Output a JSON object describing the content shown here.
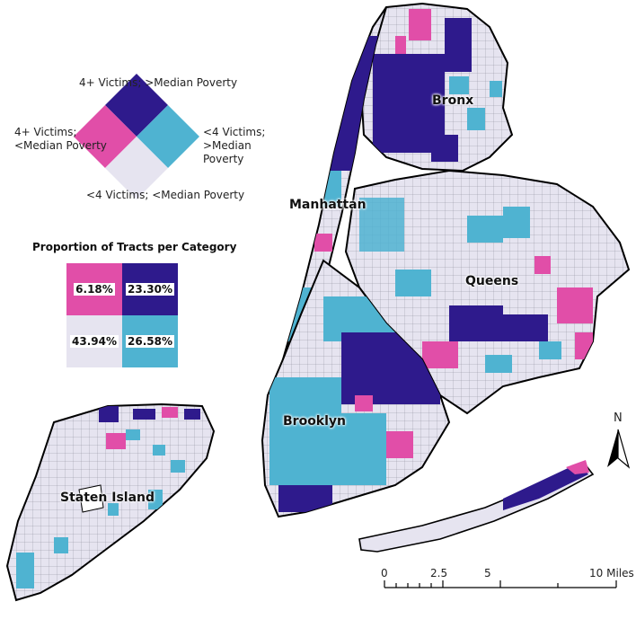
{
  "colors": {
    "high_victims_low_poverty": "#e14ea8",
    "high_victims_high_poverty": "#2e1a8c",
    "low_victims_high_poverty": "#4fb3d1",
    "low_victims_low_poverty": "#e6e4f0",
    "land_lines": "#000000",
    "water": "#ffffff"
  },
  "legend": {
    "top": "4+ Victims; >Median Poverty",
    "left_line1": "4+ Victims;",
    "left_line2": "<Median Poverty",
    "right_line1": "<4 Victims;",
    "right_line2": ">Median",
    "right_line3": "Poverty",
    "bottom": "<4 Victims; <Median Poverty"
  },
  "proportions": {
    "title": "Proportion of Tracts per Category",
    "top_left": "6.18%",
    "top_right": "23.30%",
    "bottom_left": "43.94%",
    "bottom_right": "26.58%"
  },
  "boroughs": {
    "bronx": "Bronx",
    "manhattan": "Manhattan",
    "queens": "Queens",
    "brooklyn": "Brooklyn",
    "staten_island": "Staten Island"
  },
  "north_arrow": "N",
  "scale_bar": {
    "labels": [
      "0",
      "2.5",
      "5",
      "10 Miles"
    ]
  }
}
